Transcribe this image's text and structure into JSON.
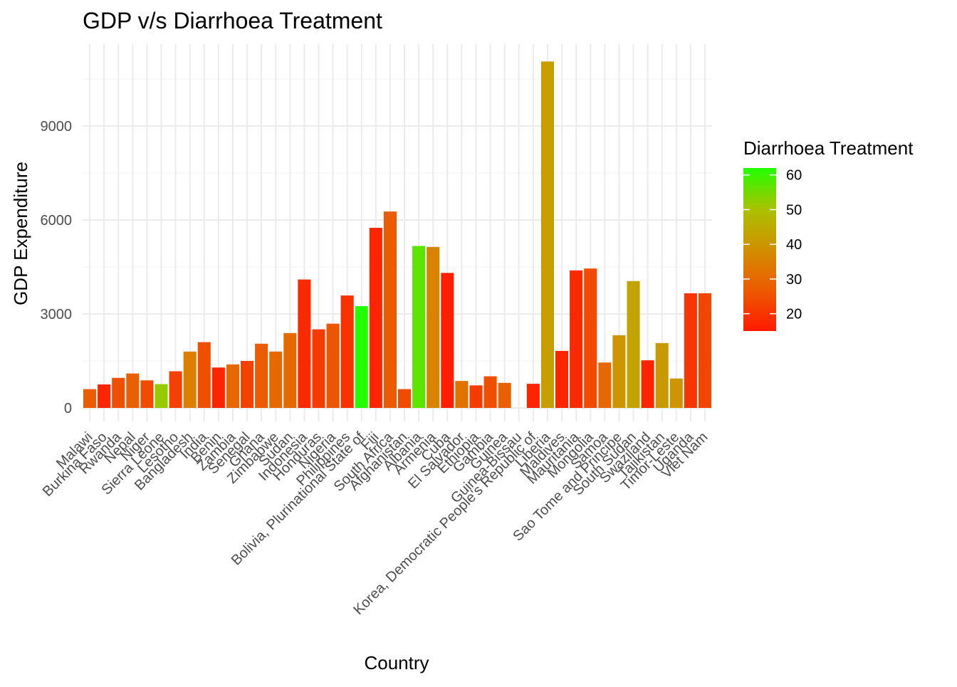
{
  "chart_data": {
    "type": "bar",
    "title": "GDP v/s Diarrhoea Treatment",
    "xlabel": "Country",
    "ylabel": "GDP Expenditure",
    "ylim": [
      -400,
      11400
    ],
    "yticks": [
      0,
      3000,
      6000,
      9000
    ],
    "grid": true,
    "legend": {
      "title": "Diarrhoea Treatment",
      "placement": "right",
      "type": "colorbar",
      "range": [
        15,
        62
      ],
      "ticks": [
        20,
        30,
        40,
        50,
        60
      ],
      "low_color": "#ff1a00",
      "high_color": "#22ff00"
    },
    "categories": [
      "Malawi",
      "Burkina Faso",
      "Rwanda",
      "Nepal",
      "Niger",
      "Sierra Leone",
      "Lesotho",
      "Bangladesh",
      "India",
      "Benin",
      "Zambia",
      "Senegal",
      "Ghana",
      "Zimbabwe",
      "Sudan",
      "Indonesia",
      "Honduras",
      "Nigeria",
      "Philippines",
      "Bolivia, Plurinational State of",
      "Fiji",
      "South Africa",
      "Afghanistan",
      "Albania",
      "Armenia",
      "Cuba",
      "El Salvador",
      "Ethiopia",
      "Gambia",
      "Guinea",
      "Guinea-Bissau",
      "Korea, Democratic People's Republic of",
      "Liberia",
      "Maldives",
      "Mauritania",
      "Mongolia",
      "Samoa",
      "Sao Tome and Principe",
      "South Sudan",
      "Swaziland",
      "Tajikistan",
      "Timor-Leste",
      "Uganda",
      "Viet Nam"
    ],
    "values": [
      600,
      750,
      960,
      1100,
      880,
      760,
      1170,
      1800,
      2100,
      1290,
      1390,
      1500,
      2050,
      1800,
      2390,
      4100,
      2510,
      2690,
      3590,
      3250,
      5750,
      6270,
      600,
      5170,
      5140,
      4310,
      860,
      720,
      1010,
      800,
      0,
      770,
      11060,
      1820,
      4390,
      4450,
      1450,
      2320,
      4050,
      1520,
      2070,
      940,
      3660,
      3660
    ],
    "treatment": [
      27,
      17,
      25,
      28,
      24,
      52,
      22,
      35,
      25,
      17,
      30,
      22,
      27,
      30,
      30,
      18,
      21,
      26,
      19,
      62,
      17,
      27,
      24,
      57,
      36,
      16,
      32,
      21,
      25,
      28,
      30,
      17,
      42,
      17,
      18,
      24,
      30,
      40,
      43,
      17,
      41,
      40,
      20,
      23
    ]
  }
}
